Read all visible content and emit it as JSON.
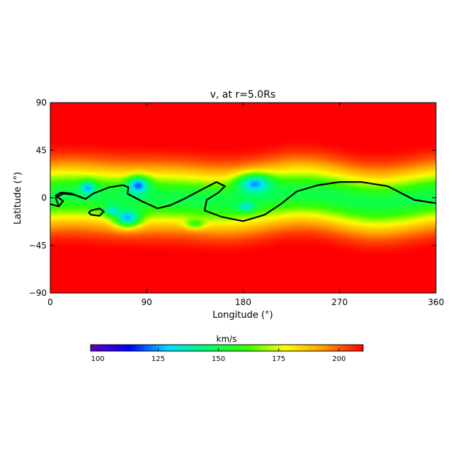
{
  "chart_data": {
    "type": "heatmap",
    "title": "v, at r=5.0Rs",
    "xlabel": "Longitude (°)",
    "ylabel": "Latitude (°)",
    "xlim": [
      0,
      360
    ],
    "ylim": [
      -90,
      90
    ],
    "x_ticks": [
      {
        "value": 0,
        "label": "0"
      },
      {
        "value": 90,
        "label": "90"
      },
      {
        "value": 180,
        "label": "180"
      },
      {
        "value": 270,
        "label": "270"
      },
      {
        "value": 360,
        "label": "360"
      }
    ],
    "y_ticks": [
      {
        "value": 90,
        "label": "90"
      },
      {
        "value": 45,
        "label": "45"
      },
      {
        "value": 0,
        "label": "0"
      },
      {
        "value": -45,
        "label": "−45"
      },
      {
        "value": -90,
        "label": "−90"
      }
    ],
    "colorbar": {
      "label": "km/s",
      "range": [
        97,
        210
      ],
      "ticks": [
        {
          "value": 100,
          "label": "100"
        },
        {
          "value": 125,
          "label": "125"
        },
        {
          "value": 150,
          "label": "150"
        },
        {
          "value": 175,
          "label": "175"
        },
        {
          "value": 200,
          "label": "200"
        }
      ],
      "colors": [
        "#6600cc",
        "#0000ff",
        "#00e0ff",
        "#00ff66",
        "#33ff00",
        "#ffff00",
        "#ff9900",
        "#ff0000"
      ]
    },
    "field_model": {
      "base_speed": 212,
      "slow_band_depth": 62,
      "slow_band_halfwidth_deg": 27,
      "slow_regions": [
        {
          "lon": 82,
          "lat": 13,
          "dlon": 10,
          "dlat": 8,
          "depth": 42
        },
        {
          "lon": 35,
          "lat": 10,
          "dlon": 7,
          "dlat": 6,
          "depth": 30
        },
        {
          "lon": 72,
          "lat": -20,
          "dlon": 12,
          "dlat": 8,
          "depth": 50
        },
        {
          "lon": 57,
          "lat": -12,
          "dlon": 7,
          "dlat": 5,
          "depth": 26
        },
        {
          "lon": 135,
          "lat": -25,
          "dlon": 9,
          "dlat": 4,
          "depth": 25
        },
        {
          "lon": 190,
          "lat": 15,
          "dlon": 16,
          "dlat": 9,
          "depth": 42
        },
        {
          "lon": 183,
          "lat": -9,
          "dlon": 8,
          "dlat": 4,
          "depth": 24
        }
      ]
    },
    "neutral_line": [
      [
        0,
        -6
      ],
      [
        8,
        -8
      ],
      [
        12,
        -3
      ],
      [
        5,
        2
      ],
      [
        10,
        5
      ],
      [
        20,
        4
      ],
      [
        30,
        0
      ],
      [
        33,
        -1
      ],
      [
        40,
        4
      ],
      [
        55,
        10
      ],
      [
        68,
        12
      ],
      [
        73,
        10
      ],
      [
        72,
        4
      ],
      [
        85,
        -3
      ],
      [
        100,
        -10
      ],
      [
        112,
        -7
      ],
      [
        125,
        -1
      ],
      [
        140,
        7
      ],
      [
        155,
        15
      ],
      [
        163,
        11
      ],
      [
        157,
        5
      ],
      [
        146,
        -2
      ],
      [
        144,
        -12
      ],
      [
        160,
        -18
      ],
      [
        180,
        -22
      ],
      [
        200,
        -16
      ],
      [
        215,
        -6
      ],
      [
        230,
        6
      ],
      [
        250,
        12
      ],
      [
        270,
        15
      ],
      [
        290,
        15
      ],
      [
        315,
        11
      ],
      [
        340,
        -2
      ],
      [
        360,
        -5
      ]
    ],
    "neutral_line_b": [
      [
        8,
        -8
      ],
      [
        5,
        0
      ],
      [
        12,
        4
      ],
      [
        22,
        3
      ],
      [
        33,
        -1
      ]
    ],
    "loop": [
      [
        38,
        -12
      ],
      [
        46,
        -10
      ],
      [
        50,
        -13
      ],
      [
        46,
        -17
      ],
      [
        38,
        -16
      ],
      [
        36,
        -14
      ],
      [
        38,
        -12
      ]
    ]
  }
}
